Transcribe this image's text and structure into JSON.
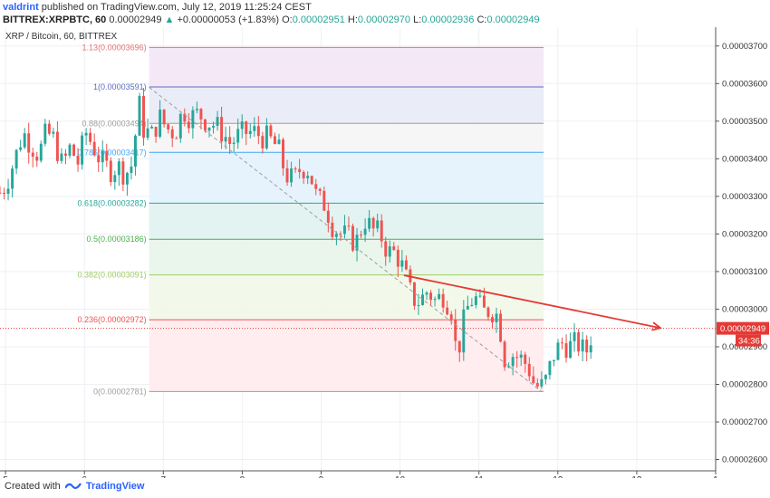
{
  "header": {
    "author": "valdrint",
    "published": "published on TradingView.com, July 12, 2019 11:25:24 CEST",
    "symbol": "BITTREX:XRPBTC, 60",
    "last": "0.00002949",
    "change_arrow": "▲",
    "change": "+0.00000053 (+1.83%)",
    "o_label": "O:",
    "o": "0.00002951",
    "h_label": "H:",
    "h": "0.00002970",
    "l_label": "L:",
    "l": "0.00002936",
    "c_label": "C:",
    "c": "0.00002949"
  },
  "footer": {
    "prefix": "Created with",
    "brand": "TradingView"
  },
  "colors": {
    "up": "#26a69a",
    "down": "#ef5350",
    "trendline": "#e53935",
    "price_line": "#e53935"
  },
  "chart_data": {
    "type": "candlestick",
    "title": "XRP / Bitcoin, 60, BITTREX",
    "x_ticks": [
      "5",
      "6",
      "7",
      "8",
      "9",
      "10",
      "11",
      "12",
      "13",
      "1"
    ],
    "x_tick_values": [
      5,
      6,
      7,
      8,
      9,
      10,
      11,
      12,
      13,
      14
    ],
    "xlim": [
      4.93,
      14.0
    ],
    "ylim": [
      2.57e-05,
      3.75e-05
    ],
    "y_ticks": [
      "0.00003700",
      "0.00003600",
      "0.00003500",
      "0.00003400",
      "0.00003300",
      "0.00003200",
      "0.00003100",
      "0.00003000",
      "0.00002900",
      "0.00002800",
      "0.00002700",
      "0.00002600"
    ],
    "y_tick_values": [
      3.7e-05,
      3.6e-05,
      3.5e-05,
      3.4e-05,
      3.3e-05,
      3.2e-05,
      3.1e-05,
      3e-05,
      2.9e-05,
      2.8e-05,
      2.7e-05,
      2.6e-05
    ],
    "current_price": {
      "label": "0.00002949",
      "value": 2.949e-05,
      "timer": "34:36"
    },
    "fibonacci": {
      "x_start": 6.82,
      "x_end": 11.82,
      "levels": [
        {
          "label": "1.13(0.00003696)",
          "value": 3.696e-05,
          "color": "#e57373",
          "fill": "#f3e5f5"
        },
        {
          "label": "1(0.00003591)",
          "value": 3.591e-05,
          "color": "#5c6bc0",
          "fill": "#e8eaf6"
        },
        {
          "label": "0.88(0.00003494)",
          "value": 3.494e-05,
          "color": "#9e9e9e",
          "fill": "#f5f5f5"
        },
        {
          "label": "0.786(0.00003417)",
          "value": 3.417e-05,
          "color": "#42a5f5",
          "fill": "#e3f2fd"
        },
        {
          "label": "0.618(0.00003282)",
          "value": 3.282e-05,
          "color": "#26a69a",
          "fill": "#e0f2f1"
        },
        {
          "label": "0.5(0.00003186)",
          "value": 3.186e-05,
          "color": "#4caf50",
          "fill": "#e8f5e9"
        },
        {
          "label": "0.382(0.00003091)",
          "value": 3.091e-05,
          "color": "#9ccc65",
          "fill": "#f1f8e9"
        },
        {
          "label": "0.236(0.00002972)",
          "value": 2.972e-05,
          "color": "#ef5350",
          "fill": "#ffebee"
        },
        {
          "label": "0(0.00002781)",
          "value": 2.781e-05,
          "color": "#9e9e9e",
          "fill": "#fbe9e7"
        }
      ]
    },
    "dashed_trend": {
      "x1": 6.82,
      "y1": 3.59e-05,
      "x2": 11.8,
      "y2": 2.78e-05
    },
    "resistance_arrow": {
      "x1": 10.05,
      "y1": 3.09e-05,
      "x2": 13.3,
      "y2": 2.95e-05
    },
    "close_path": [
      [
        4.93,
        3.31e-05
      ],
      [
        5.0,
        3.33e-05
      ],
      [
        5.12,
        3.4e-05
      ],
      [
        5.22,
        3.47e-05
      ],
      [
        5.32,
        3.44e-05
      ],
      [
        5.42,
        3.41e-05
      ],
      [
        5.52,
        3.47e-05
      ],
      [
        5.62,
        3.45e-05
      ],
      [
        5.72,
        3.38e-05
      ],
      [
        5.82,
        3.43e-05
      ],
      [
        5.92,
        3.39e-05
      ],
      [
        6.02,
        3.47e-05
      ],
      [
        6.12,
        3.43e-05
      ],
      [
        6.22,
        3.39e-05
      ],
      [
        6.32,
        3.37e-05
      ],
      [
        6.42,
        3.38e-05
      ],
      [
        6.52,
        3.36e-05
      ],
      [
        6.62,
        3.39e-05
      ],
      [
        6.68,
        3.56e-05
      ],
      [
        6.75,
        3.48e-05
      ],
      [
        6.85,
        3.46e-05
      ],
      [
        6.95,
        3.51e-05
      ],
      [
        7.05,
        3.48e-05
      ],
      [
        7.15,
        3.47e-05
      ],
      [
        7.25,
        3.53e-05
      ],
      [
        7.35,
        3.51e-05
      ],
      [
        7.45,
        3.52e-05
      ],
      [
        7.55,
        3.5e-05
      ],
      [
        7.65,
        3.49e-05
      ],
      [
        7.75,
        3.47e-05
      ],
      [
        7.85,
        3.44e-05
      ],
      [
        7.95,
        3.46e-05
      ],
      [
        8.05,
        3.47e-05
      ],
      [
        8.15,
        3.47e-05
      ],
      [
        8.25,
        3.46e-05
      ],
      [
        8.35,
        3.45e-05
      ],
      [
        8.45,
        3.43e-05
      ],
      [
        8.55,
        3.36e-05
      ],
      [
        8.65,
        3.34e-05
      ],
      [
        8.75,
        3.38e-05
      ],
      [
        8.85,
        3.37e-05
      ],
      [
        8.95,
        3.29e-05
      ],
      [
        9.05,
        3.28e-05
      ],
      [
        9.15,
        3.22e-05
      ],
      [
        9.25,
        3.2e-05
      ],
      [
        9.35,
        3.19e-05
      ],
      [
        9.45,
        3.18e-05
      ],
      [
        9.55,
        3.24e-05
      ],
      [
        9.65,
        3.21e-05
      ],
      [
        9.75,
        3.2e-05
      ],
      [
        9.85,
        3.15e-05
      ],
      [
        9.95,
        3.15e-05
      ],
      [
        10.05,
        3.1e-05
      ],
      [
        10.15,
        3.03e-05
      ],
      [
        10.25,
        3.02e-05
      ],
      [
        10.35,
        3.05e-05
      ],
      [
        10.45,
        3.02e-05
      ],
      [
        10.55,
        3.04e-05
      ],
      [
        10.65,
        3e-05
      ],
      [
        10.72,
        2.87e-05
      ],
      [
        10.8,
        2.96e-05
      ],
      [
        10.88,
        3.02e-05
      ],
      [
        10.95,
        3.03e-05
      ],
      [
        11.05,
        2.99e-05
      ],
      [
        11.15,
        3e-05
      ],
      [
        11.25,
        2.98e-05
      ],
      [
        11.32,
        2.87e-05
      ],
      [
        11.42,
        2.88e-05
      ],
      [
        11.52,
        2.87e-05
      ],
      [
        11.62,
        2.85e-05
      ],
      [
        11.7,
        2.8e-05
      ],
      [
        11.78,
        2.79e-05
      ],
      [
        11.85,
        2.81e-05
      ],
      [
        11.95,
        2.88e-05
      ],
      [
        12.05,
        2.91e-05
      ],
      [
        12.15,
        2.9e-05
      ],
      [
        12.25,
        2.91e-05
      ],
      [
        12.35,
        2.88e-05
      ],
      [
        12.45,
        2.949e-05
      ]
    ]
  }
}
